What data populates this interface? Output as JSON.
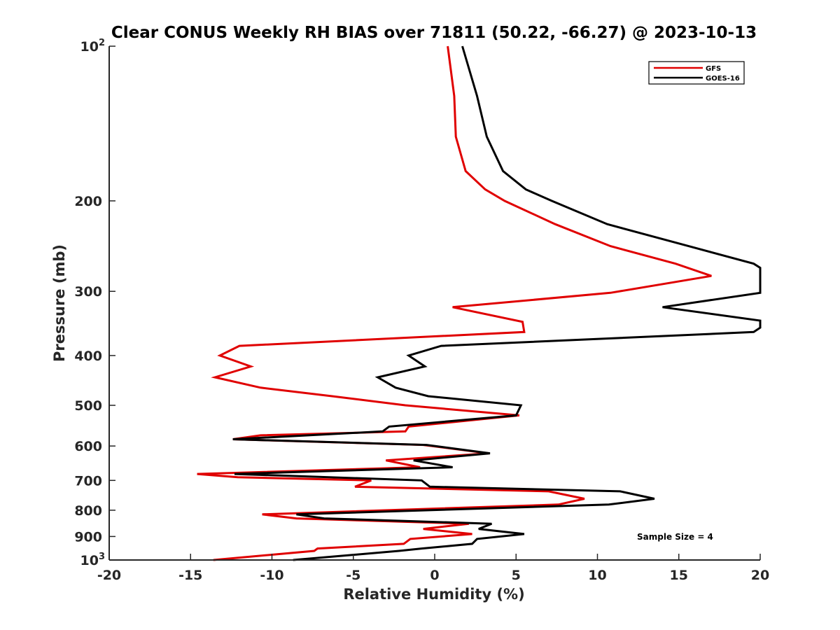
{
  "chart_data": {
    "type": "line",
    "title": "Clear CONUS Weekly RH BIAS over 71811 (50.22, -66.27) @ 2023-10-13",
    "xlabel": "Relative Humidity (%)",
    "ylabel": "Pressure (mb)",
    "xlim": [
      -20,
      20
    ],
    "ylim": [
      100,
      1000
    ],
    "yscale": "log",
    "yreversed": true,
    "x_ticks": [
      -20,
      -15,
      -10,
      -5,
      0,
      5,
      10,
      15,
      20
    ],
    "x_tick_labels": [
      "-20",
      "-15",
      "-10",
      "-5",
      "0",
      "5",
      "10",
      "15",
      "20"
    ],
    "y_ticks": [
      100,
      200,
      300,
      400,
      500,
      600,
      700,
      800,
      900,
      1000
    ],
    "y_tick_labels": [
      "10²",
      "200",
      "300",
      "400",
      "500",
      "600",
      "700",
      "800",
      "900",
      "10³"
    ],
    "y_tick_base_labels": {
      "100": "10",
      "1000": "10"
    },
    "y_tick_sup_labels": {
      "100": "2",
      "1000": "3"
    },
    "grid": false,
    "legend": {
      "position": "top-right",
      "entries": [
        "GFS",
        "GOES-16"
      ]
    },
    "annotation": "Sample Size = 4",
    "series": [
      {
        "name": "GFS",
        "color": "#e00000",
        "points": [
          [
            0.8,
            100
          ],
          [
            1.2,
            125
          ],
          [
            1.3,
            150
          ],
          [
            1.9,
            175
          ],
          [
            3.1,
            190
          ],
          [
            4.3,
            200
          ],
          [
            7.4,
            222
          ],
          [
            10.8,
            245
          ],
          [
            14.8,
            265
          ],
          [
            17,
            280
          ],
          [
            10.8,
            302
          ],
          [
            1.1,
            322
          ],
          [
            5.4,
            344
          ],
          [
            5.5,
            360
          ],
          [
            -12,
            383
          ],
          [
            -13.2,
            400
          ],
          [
            -11.3,
            420
          ],
          [
            -13.5,
            441
          ],
          [
            -10.7,
            462
          ],
          [
            -6.3,
            480
          ],
          [
            -1.8,
            500
          ],
          [
            5.2,
            523
          ],
          [
            -1.6,
            550
          ],
          [
            -1.8,
            562
          ],
          [
            -10.7,
            572
          ],
          [
            -12.4,
            582
          ],
          [
            -0.7,
            597
          ],
          [
            3.3,
            620
          ],
          [
            -3,
            640
          ],
          [
            -0.9,
            660
          ],
          [
            -14.6,
            680
          ],
          [
            -12.1,
            690
          ],
          [
            -3.9,
            700
          ],
          [
            -4.9,
            720
          ],
          [
            7,
            735
          ],
          [
            9.2,
            760
          ],
          [
            7.6,
            780
          ],
          [
            -10.6,
            815
          ],
          [
            -8.5,
            830
          ],
          [
            2.1,
            850
          ],
          [
            -0.7,
            870
          ],
          [
            2.3,
            890
          ],
          [
            -1.5,
            910
          ],
          [
            -1.9,
            930
          ],
          [
            -7.2,
            950
          ],
          [
            -7.4,
            960
          ],
          [
            -13.6,
            1000
          ]
        ]
      },
      {
        "name": "GOES-16",
        "color": "#000000",
        "points": [
          [
            1.7,
            100
          ],
          [
            2.6,
            125
          ],
          [
            3.2,
            150
          ],
          [
            4.2,
            175
          ],
          [
            5.6,
            190
          ],
          [
            7.2,
            200
          ],
          [
            10.6,
            222
          ],
          [
            15.6,
            245
          ],
          [
            19.6,
            265
          ],
          [
            20,
            270
          ],
          [
            20,
            302
          ],
          [
            14,
            322
          ],
          [
            20,
            342
          ],
          [
            20,
            353
          ],
          [
            19.6,
            360
          ],
          [
            0.4,
            383
          ],
          [
            -1.6,
            400
          ],
          [
            -0.6,
            420
          ],
          [
            -3.5,
            441
          ],
          [
            -2.4,
            462
          ],
          [
            -0.4,
            480
          ],
          [
            5.3,
            500
          ],
          [
            5,
            523
          ],
          [
            -2.8,
            550
          ],
          [
            -3.2,
            562
          ],
          [
            -12.4,
            582
          ],
          [
            -0.5,
            597
          ],
          [
            3.4,
            620
          ],
          [
            -1.3,
            640
          ],
          [
            1.1,
            660
          ],
          [
            -12.3,
            680
          ],
          [
            -0.8,
            700
          ],
          [
            -0.3,
            720
          ],
          [
            11.4,
            735
          ],
          [
            13.5,
            760
          ],
          [
            10.7,
            780
          ],
          [
            -8.5,
            815
          ],
          [
            -6.8,
            830
          ],
          [
            3.5,
            850
          ],
          [
            2.7,
            870
          ],
          [
            5.5,
            890
          ],
          [
            2.6,
            910
          ],
          [
            2.3,
            930
          ],
          [
            -0.8,
            950
          ],
          [
            -2.2,
            960
          ],
          [
            -8.7,
            1000
          ]
        ]
      }
    ]
  }
}
